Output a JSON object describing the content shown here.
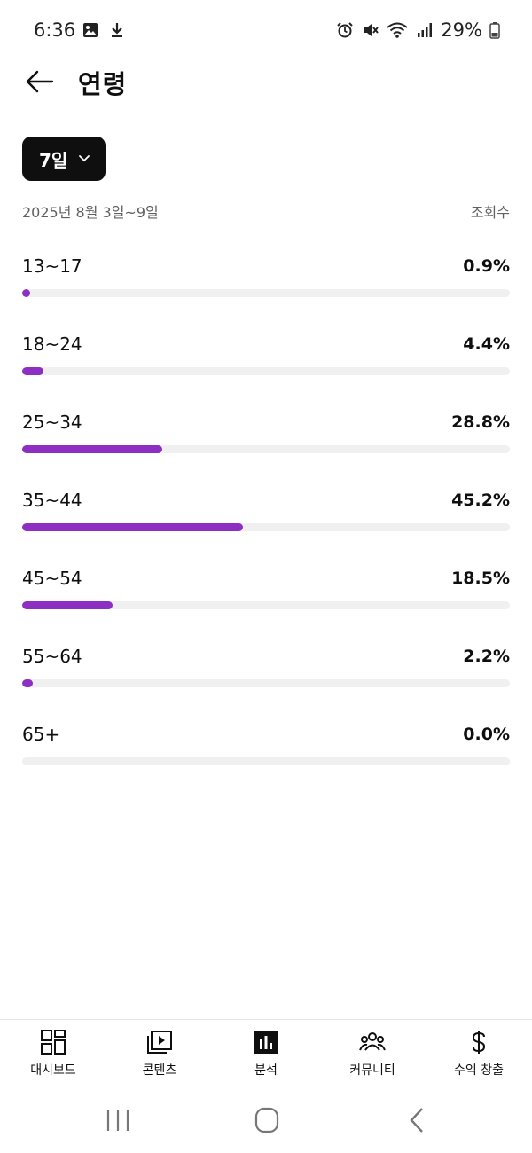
{
  "status_bar": {
    "time": "6:36",
    "battery": "29%",
    "icons": [
      "image-icon",
      "download-icon",
      "alarm-icon",
      "mute-icon",
      "wifi-icon",
      "signal-icon",
      "battery-icon"
    ]
  },
  "header": {
    "title": "연령",
    "back_icon": "back-arrow-icon"
  },
  "period": {
    "selected": "7일"
  },
  "range": {
    "dates": "2025년 8월 3일~9일",
    "metric": "조회수"
  },
  "colors": {
    "accent": "#8e2fc4",
    "track": "#f0f0f0"
  },
  "age_groups": [
    {
      "label": "13~17",
      "percent_text": "0.9%",
      "percent": 0.9
    },
    {
      "label": "18~24",
      "percent_text": "4.4%",
      "percent": 4.4
    },
    {
      "label": "25~34",
      "percent_text": "28.8%",
      "percent": 28.8
    },
    {
      "label": "35~44",
      "percent_text": "45.2%",
      "percent": 45.2
    },
    {
      "label": "45~54",
      "percent_text": "18.5%",
      "percent": 18.5
    },
    {
      "label": "55~64",
      "percent_text": "2.2%",
      "percent": 2.2
    },
    {
      "label": "65+",
      "percent_text": "0.0%",
      "percent": 0.0
    }
  ],
  "bottom_nav": {
    "items": [
      {
        "label": "대시보드",
        "icon": "dashboard-icon"
      },
      {
        "label": "콘텐츠",
        "icon": "content-icon"
      },
      {
        "label": "분석",
        "icon": "analytics-icon"
      },
      {
        "label": "커뮤니티",
        "icon": "community-icon"
      },
      {
        "label": "수익 창출",
        "icon": "monetization-icon"
      }
    ]
  }
}
